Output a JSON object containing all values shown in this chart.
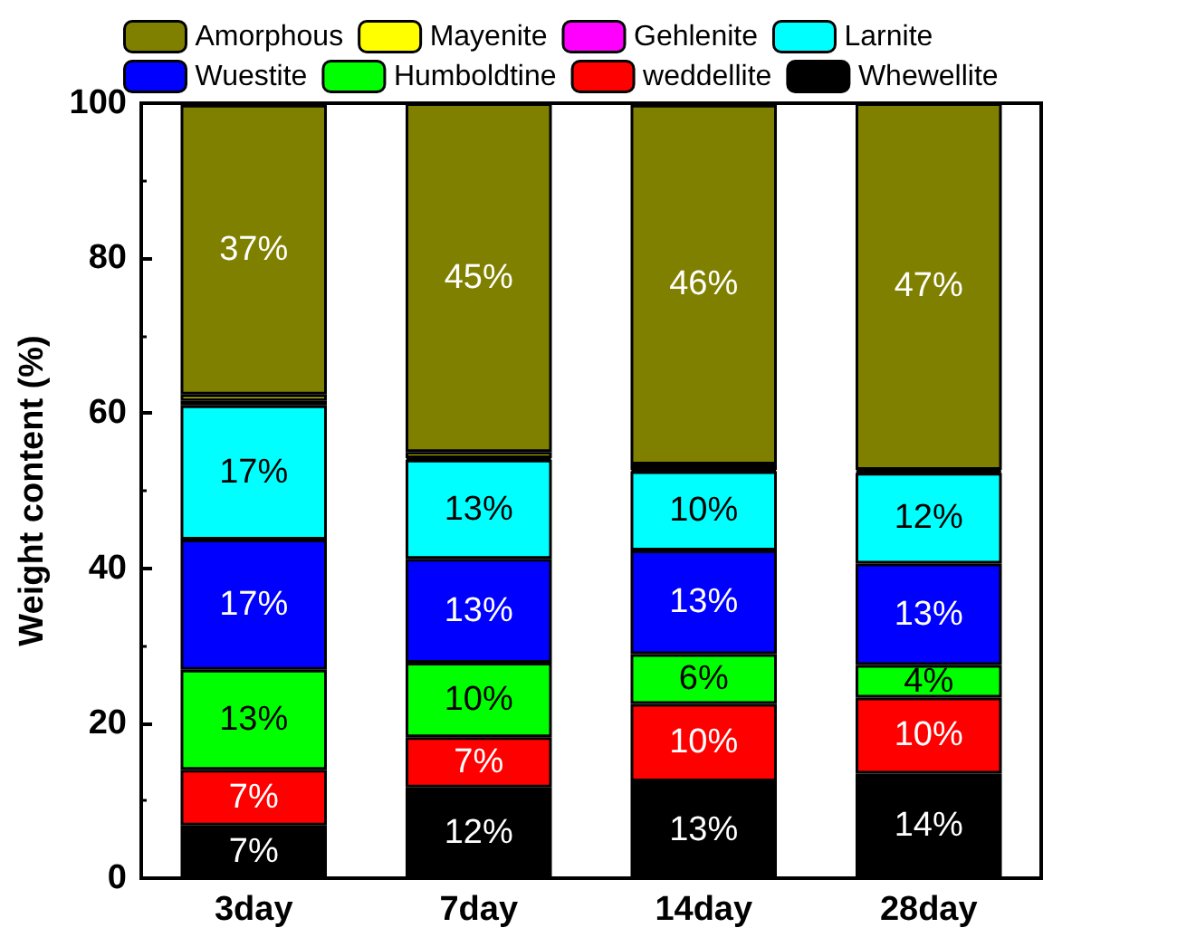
{
  "chart_data": {
    "type": "bar",
    "stacked": true,
    "ylabel": "Weight content (%)",
    "categories": [
      "3day",
      "7day",
      "14day",
      "28day"
    ],
    "ylim": [
      0,
      100
    ],
    "yticks": [
      0,
      20,
      40,
      60,
      80,
      100
    ],
    "grid": false,
    "legend": "top",
    "series": [
      {
        "name": "Whewellite",
        "color": "#000000",
        "values": [
          6.8,
          11.7,
          12.5,
          13.5
        ],
        "value_labels": [
          "7%",
          "12%",
          "13%",
          "14%"
        ]
      },
      {
        "name": "weddellite",
        "color": "#ff0000",
        "values": [
          7.2,
          6.5,
          10.0,
          9.8
        ],
        "value_labels": [
          "7%",
          "7%",
          "10%",
          "10%"
        ]
      },
      {
        "name": "Humboldtine",
        "color": "#00ff00",
        "values": [
          12.9,
          9.6,
          6.4,
          4.2
        ],
        "value_labels": [
          "13%",
          "10%",
          "6%",
          "4%"
        ]
      },
      {
        "name": "Wuestite",
        "color": "#0000ff",
        "values": [
          16.8,
          13.4,
          13.4,
          13.1
        ],
        "value_labels": [
          "17%",
          "13%",
          "13%",
          "13%"
        ]
      },
      {
        "name": "Larnite",
        "color": "#00ffff",
        "values": [
          17.3,
          12.8,
          10.2,
          11.7
        ],
        "value_labels": [
          "17%",
          "13%",
          "10%",
          "12%"
        ]
      },
      {
        "name": "Gehlenite",
        "color": "#ff00ff",
        "values": [
          0.6,
          0.2,
          0.2,
          0.2
        ]
      },
      {
        "name": "Mayenite",
        "color": "#ffff00",
        "values": [
          0.8,
          0.8,
          0.7,
          0.2
        ]
      },
      {
        "name": "Amorphous",
        "color": "#808000",
        "values": [
          37.4,
          45.0,
          46.4,
          47.3
        ],
        "value_labels": [
          "37%",
          "45%",
          "46%",
          "47%"
        ]
      }
    ]
  }
}
